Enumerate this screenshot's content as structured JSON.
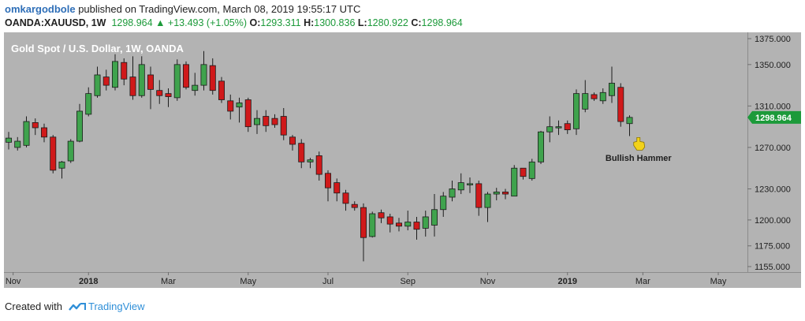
{
  "header": {
    "author": "omkargodbole",
    "published": " published on TradingView.com, March 08, 2019 19:55:17 UTC",
    "symbol": "OANDA:XAUUSD, 1W",
    "last": "1298.964",
    "change": "+13.493 (+1.05%)",
    "o_label": "O:",
    "o_val": "1293.311",
    "h_label": "H:",
    "h_val": "1300.836",
    "l_label": "L:",
    "l_val": "1280.922",
    "c_label": "C:",
    "c_val": "1298.964"
  },
  "footer": {
    "created_with": "Created with",
    "brand": "TradingView"
  },
  "colors": {
    "panel": "#b3b3b3",
    "up": "#3fa34d",
    "down": "#d0191a",
    "accent": "#1c9a3a",
    "annotation": "#f2d21b"
  },
  "chart_data": {
    "type": "candlestick",
    "title": "Gold Spot / U.S. Dollar, 1W, OANDA",
    "ylim": [
      1155,
      1375
    ],
    "yticks": [
      "1375.000",
      "1350.000",
      "1310.000",
      "1270.000",
      "1230.000",
      "1200.000",
      "1175.000",
      "1155.000"
    ],
    "ytick_values": [
      1375,
      1350,
      1310,
      1270,
      1230,
      1200,
      1175,
      1155
    ],
    "xticks": [
      "Nov",
      "2018",
      "Mar",
      "May",
      "Jul",
      "Sep",
      "Nov",
      "2019",
      "Mar",
      "May"
    ],
    "xtick_index": [
      0.5,
      9,
      18,
      27,
      36,
      45,
      54,
      63,
      71.5,
      80
    ],
    "last_price_label": "1298.964",
    "annotation": "Bullish Hammer",
    "annotation_index": 71,
    "candles": [
      [
        1275,
        1279,
        1268,
        1285
      ],
      [
        1270,
        1276,
        1267,
        1280
      ],
      [
        1272,
        1295,
        1270,
        1300
      ],
      [
        1294,
        1289,
        1282,
        1298
      ],
      [
        1289,
        1280,
        1275,
        1293
      ],
      [
        1280,
        1248,
        1245,
        1282
      ],
      [
        1250,
        1256,
        1240,
        1257
      ],
      [
        1257,
        1276,
        1255,
        1278
      ],
      [
        1276,
        1305,
        1275,
        1312
      ],
      [
        1302,
        1322,
        1300,
        1328
      ],
      [
        1320,
        1340,
        1318,
        1348
      ],
      [
        1338,
        1330,
        1325,
        1345
      ],
      [
        1328,
        1353,
        1325,
        1360
      ],
      [
        1352,
        1336,
        1330,
        1356
      ],
      [
        1338,
        1320,
        1316,
        1358
      ],
      [
        1320,
        1350,
        1318,
        1358
      ],
      [
        1340,
        1326,
        1307,
        1348
      ],
      [
        1325,
        1320,
        1312,
        1335
      ],
      [
        1322,
        1319,
        1309,
        1327
      ],
      [
        1318,
        1350,
        1315,
        1355
      ],
      [
        1350,
        1328,
        1326,
        1353
      ],
      [
        1325,
        1330,
        1320,
        1342
      ],
      [
        1330,
        1350,
        1325,
        1363
      ],
      [
        1349,
        1325,
        1321,
        1356
      ],
      [
        1334,
        1316,
        1313,
        1338
      ],
      [
        1315,
        1305,
        1297,
        1321
      ],
      [
        1309,
        1313,
        1294,
        1318
      ],
      [
        1316,
        1290,
        1285,
        1318
      ],
      [
        1292,
        1298,
        1283,
        1306
      ],
      [
        1300,
        1291,
        1285,
        1306
      ],
      [
        1298,
        1292,
        1289,
        1302
      ],
      [
        1300,
        1282,
        1277,
        1308
      ],
      [
        1280,
        1273,
        1267,
        1282
      ],
      [
        1274,
        1256,
        1250,
        1278
      ],
      [
        1256,
        1258,
        1250,
        1260
      ],
      [
        1262,
        1244,
        1238,
        1266
      ],
      [
        1245,
        1231,
        1218,
        1248
      ],
      [
        1236,
        1226,
        1218,
        1240
      ],
      [
        1226,
        1216,
        1209,
        1229
      ],
      [
        1215,
        1212,
        1209,
        1218
      ],
      [
        1212,
        1183,
        1160,
        1216
      ],
      [
        1184,
        1206,
        1183,
        1208
      ],
      [
        1207,
        1202,
        1197,
        1210
      ],
      [
        1203,
        1196,
        1188,
        1206
      ],
      [
        1197,
        1194,
        1189,
        1202
      ],
      [
        1194,
        1198,
        1190,
        1209
      ],
      [
        1198,
        1191,
        1181,
        1203
      ],
      [
        1192,
        1203,
        1184,
        1209
      ],
      [
        1195,
        1210,
        1184,
        1225
      ],
      [
        1210,
        1223,
        1203,
        1227
      ],
      [
        1222,
        1230,
        1218,
        1238
      ],
      [
        1229,
        1236,
        1225,
        1245
      ],
      [
        1234,
        1235,
        1226,
        1241
      ],
      [
        1235,
        1212,
        1204,
        1238
      ],
      [
        1212,
        1225,
        1198,
        1227
      ],
      [
        1225,
        1227,
        1219,
        1231
      ],
      [
        1227,
        1225,
        1220,
        1230
      ],
      [
        1223,
        1250,
        1223,
        1253
      ],
      [
        1250,
        1242,
        1239,
        1250
      ],
      [
        1240,
        1256,
        1238,
        1259
      ],
      [
        1256,
        1285,
        1254,
        1286
      ],
      [
        1285,
        1290,
        1275,
        1300
      ],
      [
        1289,
        1290,
        1282,
        1296
      ],
      [
        1293,
        1287,
        1283,
        1296
      ],
      [
        1288,
        1322,
        1282,
        1326
      ],
      [
        1307,
        1322,
        1304,
        1335
      ],
      [
        1321,
        1317,
        1315,
        1323
      ],
      [
        1315,
        1323,
        1312,
        1327
      ],
      [
        1320,
        1332,
        1313,
        1348
      ],
      [
        1328,
        1295,
        1290,
        1332
      ],
      [
        1293,
        1299,
        1281,
        1301
      ]
    ]
  }
}
